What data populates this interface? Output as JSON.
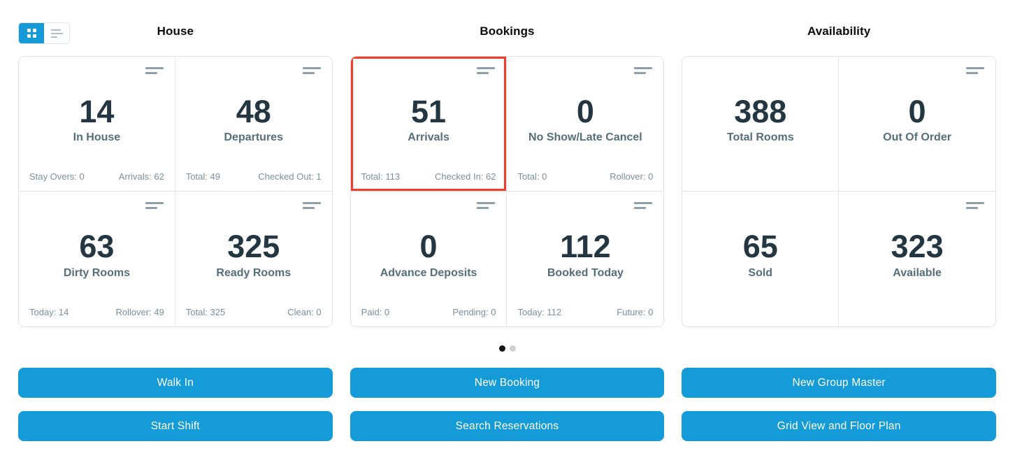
{
  "view_toggle": {
    "modes": [
      {
        "name": "grid",
        "icon": "grid-2x2-icon",
        "active": true
      },
      {
        "name": "list",
        "icon": "list-lines-icon",
        "active": false
      }
    ]
  },
  "sections": [
    {
      "title": "House",
      "cards": [
        {
          "value": "14",
          "label": "In House",
          "footer_left": "Stay Overs: 0",
          "footer_right": "Arrivals: 62",
          "has_icon": true,
          "highlighted": false
        },
        {
          "value": "48",
          "label": "Departures",
          "footer_left": "Total: 49",
          "footer_right": "Checked Out: 1",
          "has_icon": true,
          "highlighted": false
        },
        {
          "value": "63",
          "label": "Dirty Rooms",
          "footer_left": "Today: 14",
          "footer_right": "Rollover: 49",
          "has_icon": true,
          "highlighted": false
        },
        {
          "value": "325",
          "label": "Ready Rooms",
          "footer_left": "Total: 325",
          "footer_right": "Clean: 0",
          "has_icon": true,
          "highlighted": false
        }
      ]
    },
    {
      "title": "Bookings",
      "cards": [
        {
          "value": "51",
          "label": "Arrivals",
          "footer_left": "Total: 113",
          "footer_right": "Checked In: 62",
          "has_icon": true,
          "highlighted": true
        },
        {
          "value": "0",
          "label": "No Show/Late Cancel",
          "footer_left": "Total: 0",
          "footer_right": "Rollover: 0",
          "has_icon": true,
          "highlighted": false
        },
        {
          "value": "0",
          "label": "Advance Deposits",
          "footer_left": "Paid: 0",
          "footer_right": "Pending: 0",
          "has_icon": true,
          "highlighted": false
        },
        {
          "value": "112",
          "label": "Booked Today",
          "footer_left": "Today: 112",
          "footer_right": "Future: 0",
          "has_icon": true,
          "highlighted": false
        }
      ]
    },
    {
      "title": "Availability",
      "cards": [
        {
          "value": "388",
          "label": "Total Rooms",
          "has_icon": false,
          "highlighted": false
        },
        {
          "value": "0",
          "label": "Out Of Order",
          "has_icon": true,
          "highlighted": false
        },
        {
          "value": "65",
          "label": "Sold",
          "has_icon": false,
          "highlighted": false
        },
        {
          "value": "323",
          "label": "Available",
          "has_icon": true,
          "highlighted": false
        }
      ]
    }
  ],
  "pagination": {
    "dots": 2,
    "active_dot": 0
  },
  "actions": [
    "Walk In",
    "New Booking",
    "New Group Master",
    "Start Shift",
    "Search Reservations",
    "Grid View and Floor Plan"
  ],
  "icons": {
    "card_menu": "two-lines-icon",
    "toggle_grid": "grid-2x2-icon",
    "toggle_list": "list-lines-icon"
  },
  "colors": {
    "accent_blue": "#159bd8",
    "highlight_red": "#f73b28",
    "value_text": "#243642",
    "label_text": "#546e7a",
    "footer_text": "#7b909c",
    "card_border": "#e0e4e6",
    "dot_active": "#141414",
    "dot_inactive": "#cfcfcf"
  }
}
